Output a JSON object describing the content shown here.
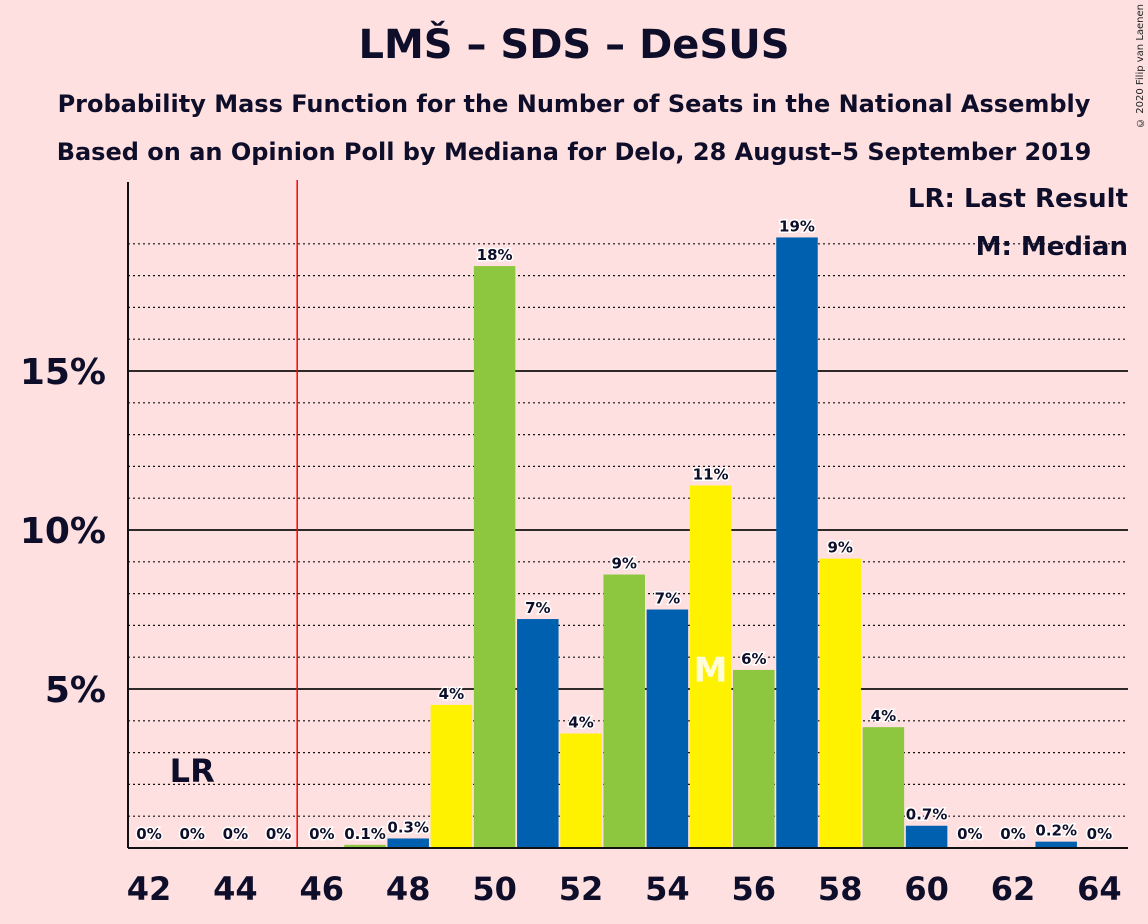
{
  "title": "LMŠ – SDS – DeSUS",
  "subtitle1": "Probability Mass Function for the Number of Seats in the National Assembly",
  "subtitle2": "Based on an Opinion Poll by Mediana for Delo, 28 August–5 September 2019",
  "copyright": "© 2020 Filip van Laenen",
  "legend": {
    "last_result": "LR: Last Result",
    "median": "M: Median"
  },
  "colors": {
    "background": "#ffe0e0",
    "blue": "#0060b0",
    "green": "#8dc63f",
    "yellow": "#fff200",
    "last_result_line": "#ff0000"
  },
  "chart_data": {
    "type": "bar",
    "xlabel": "",
    "ylabel": "",
    "ylim": [
      0,
      21
    ],
    "yticks": [
      {
        "value": 5,
        "label": "5%"
      },
      {
        "value": 10,
        "label": "10%"
      },
      {
        "value": 15,
        "label": "15%"
      }
    ],
    "xticks": [
      42,
      44,
      46,
      48,
      50,
      52,
      54,
      56,
      58,
      60,
      62,
      64
    ],
    "x": [
      42,
      43,
      44,
      45,
      46,
      47,
      48,
      49,
      50,
      51,
      52,
      53,
      54,
      55,
      56,
      57,
      58,
      59,
      60,
      61,
      62,
      63,
      64
    ],
    "values": [
      0,
      0,
      0,
      0,
      0,
      0.1,
      0.3,
      4.5,
      18.3,
      7.2,
      3.6,
      8.6,
      7.5,
      11.4,
      5.6,
      19.2,
      9.1,
      3.8,
      0.7,
      0,
      0,
      0.2,
      0
    ],
    "labels": [
      "0%",
      "0%",
      "0%",
      "0%",
      "0%",
      "0.1%",
      "0.3%",
      "4%",
      "18%",
      "7%",
      "4%",
      "9%",
      "7%",
      "11%",
      "6%",
      "19%",
      "9%",
      "4%",
      "0.7%",
      "0%",
      "0%",
      "0.2%",
      "0%"
    ],
    "bar_colors": [
      "blue",
      "green",
      "yellow",
      "blue",
      "green",
      "green",
      "blue",
      "yellow",
      "green",
      "blue",
      "yellow",
      "green",
      "blue",
      "yellow",
      "green",
      "blue",
      "yellow",
      "green",
      "blue",
      "green",
      "yellow",
      "blue",
      "green"
    ],
    "last_result": 45.5,
    "last_result_label": "LR",
    "last_result_label_x": 43,
    "median": 55,
    "median_label": "M"
  }
}
